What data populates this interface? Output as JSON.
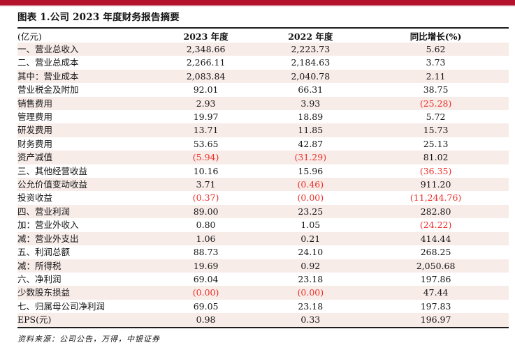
{
  "page": {
    "title": "图表 1.公司 2023 年度财务报告摘要",
    "source_note": "资料来源：公司公告，万得，中银证券"
  },
  "colors": {
    "topbar_red": "#b5122e",
    "topbar_edge": "#d2808e",
    "row_pink": "#f8ece9",
    "neg_red": "#ed2f28"
  },
  "table": {
    "columns": [
      "(亿元)",
      "2023 年度",
      "2022 年度",
      "同比增长(%)"
    ],
    "rows": [
      {
        "label": "一、营业总收入",
        "y2023": "2,348.66",
        "y2022": "2,223.73",
        "yoy": "5.62"
      },
      {
        "label": "二、营业总成本",
        "y2023": "2,266.11",
        "y2022": "2,184.63",
        "yoy": "3.73"
      },
      {
        "label": "其中：营业成本",
        "y2023": "2,083.84",
        "y2022": "2,040.78",
        "yoy": "2.11"
      },
      {
        "label": "营业税金及附加",
        "y2023": "92.01",
        "y2022": "66.31",
        "yoy": "38.75"
      },
      {
        "label": "销售费用",
        "y2023": "2.93",
        "y2022": "3.93",
        "yoy": "(25.28)"
      },
      {
        "label": "管理费用",
        "y2023": "19.97",
        "y2022": "18.89",
        "yoy": "5.72"
      },
      {
        "label": "研发费用",
        "y2023": "13.71",
        "y2022": "11.85",
        "yoy": "15.73"
      },
      {
        "label": "财务费用",
        "y2023": "53.65",
        "y2022": "42.87",
        "yoy": "25.13"
      },
      {
        "label": "资产减值",
        "y2023": "(5.94)",
        "y2022": "(31.29)",
        "yoy": "81.02"
      },
      {
        "label": "三、其他经营收益",
        "y2023": "10.16",
        "y2022": "15.96",
        "yoy": "(36.35)"
      },
      {
        "label": "公允价值变动收益",
        "y2023": "3.71",
        "y2022": "(0.46)",
        "yoy": "911.20"
      },
      {
        "label": "投资收益",
        "y2023": "(0.37)",
        "y2022": "(0.00)",
        "yoy": "(11,244.76)"
      },
      {
        "label": "四、营业利润",
        "y2023": "89.00",
        "y2022": "23.25",
        "yoy": "282.80"
      },
      {
        "label": "加：营业外收入",
        "y2023": "0.80",
        "y2022": "1.05",
        "yoy": "(24.22)"
      },
      {
        "label": "减：营业外支出",
        "y2023": "1.06",
        "y2022": "0.21",
        "yoy": "414.44"
      },
      {
        "label": "五、利润总额",
        "y2023": "88.73",
        "y2022": "24.10",
        "yoy": "268.25"
      },
      {
        "label": "减：所得税",
        "y2023": "19.69",
        "y2022": "0.92",
        "yoy": "2,050.68"
      },
      {
        "label": "六、净利润",
        "y2023": "69.04",
        "y2022": "23.18",
        "yoy": "197.86"
      },
      {
        "label": "少数股东损益",
        "y2023": "(0.00)",
        "y2022": "(0.00)",
        "yoy": "47.44"
      },
      {
        "label": "七、归属母公司净利润",
        "y2023": "69.05",
        "y2022": "23.18",
        "yoy": "197.83"
      },
      {
        "label": "EPS(元)",
        "y2023": "0.98",
        "y2022": "0.33",
        "yoy": "196.97"
      }
    ]
  }
}
